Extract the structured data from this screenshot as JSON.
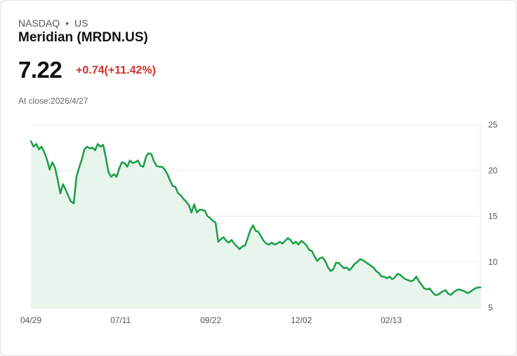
{
  "header": {
    "exchange": "NASDAQ",
    "separator": "•",
    "market": "US",
    "title": "Meridian (MRDN.US)",
    "price": "7.22",
    "change": "+0.74(+11.42%)",
    "close_label": "At close:",
    "close_date": "2026/4/27"
  },
  "colors": {
    "line": "#1a9e46",
    "fill": "#e8f5ec",
    "change": "#d0312d"
  },
  "chart_data": {
    "type": "area",
    "title": "Meridian (MRDN.US)",
    "xlabel": "",
    "ylabel": "",
    "ylim": [
      5,
      25
    ],
    "y_ticks": [
      "25",
      "20",
      "15",
      "10",
      "5"
    ],
    "x_tick_labels": [
      "04/29",
      "07/11",
      "09/22",
      "12/02",
      "02/13"
    ],
    "grid": true,
    "series": [
      {
        "name": "MRDN.US",
        "values": [
          23.2,
          22.6,
          22.9,
          22.3,
          22.6,
          22.0,
          21.2,
          20.1,
          20.9,
          20.3,
          19.0,
          17.5,
          18.5,
          17.9,
          17.2,
          16.6,
          16.4,
          19.3,
          20.3,
          21.2,
          22.3,
          22.6,
          22.4,
          22.5,
          22.2,
          22.9,
          22.6,
          22.8,
          21.4,
          19.8,
          19.3,
          19.6,
          19.3,
          20.2,
          20.9,
          20.8,
          20.4,
          21.1,
          20.8,
          20.9,
          21.1,
          20.5,
          20.4,
          21.5,
          21.9,
          21.8,
          21.0,
          20.5,
          20.4,
          20.4,
          20.1,
          19.6,
          18.9,
          18.3,
          18.2,
          17.5,
          17.3,
          16.9,
          16.6,
          16.2,
          15.4,
          16.3,
          15.4,
          15.7,
          15.7,
          15.6,
          15.0,
          14.8,
          14.5,
          14.3,
          12.2,
          12.5,
          12.7,
          12.3,
          12.1,
          12.4,
          12.0,
          11.7,
          11.4,
          11.7,
          11.8,
          12.6,
          13.5,
          14.0,
          13.4,
          13.3,
          12.8,
          12.3,
          12.0,
          11.9,
          12.1,
          11.9,
          12.0,
          12.2,
          12.0,
          12.3,
          12.6,
          12.4,
          12.0,
          12.2,
          11.9,
          12.3,
          12.1,
          11.8,
          11.3,
          11.2,
          10.6,
          10.1,
          10.4,
          10.5,
          10.1,
          9.4,
          9.0,
          9.2,
          9.9,
          9.9,
          9.6,
          9.3,
          9.4,
          9.1,
          9.4,
          9.8,
          10.0,
          10.3,
          10.2,
          10.0,
          9.8,
          9.6,
          9.4,
          9.0,
          8.8,
          8.4,
          8.4,
          8.2,
          8.4,
          8.1,
          8.3,
          8.7,
          8.6,
          8.3,
          8.1,
          8.0,
          7.9,
          8.0,
          8.4,
          7.9,
          7.5,
          7.1,
          7.0,
          7.1,
          6.7,
          6.4,
          6.4,
          6.6,
          6.8,
          6.9,
          6.5,
          6.4,
          6.7,
          6.9,
          7.0,
          6.9,
          6.8,
          6.6,
          6.7,
          6.9,
          7.1,
          7.2,
          7.22
        ]
      }
    ]
  }
}
